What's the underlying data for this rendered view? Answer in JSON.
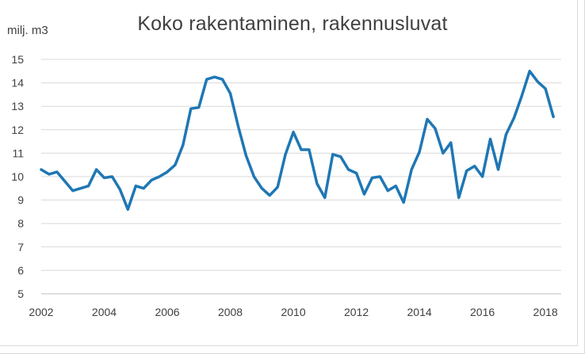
{
  "chart_data": {
    "type": "line",
    "title": "Koko rakentaminen, rakennusluvat",
    "ylabel": "milj. m3",
    "xlabel": "",
    "ylim": [
      5,
      15
    ],
    "yticks": [
      "5",
      "6",
      "7",
      "8",
      "9",
      "10",
      "11",
      "12",
      "13",
      "14",
      "15"
    ],
    "xticks": [
      "2002",
      "2004",
      "2006",
      "2008",
      "2010",
      "2012",
      "2014",
      "2016",
      "2018"
    ],
    "xlim": [
      2002,
      2018.5
    ],
    "grid": true,
    "legend": "none",
    "line_color": "#1f77b4",
    "series": [
      {
        "x": [
          2002,
          2002.25,
          2002.5,
          2002.75,
          2003,
          2003.25,
          2003.5,
          2003.75,
          2004,
          2004.25,
          2004.5,
          2004.75,
          2005,
          2005.25,
          2005.5,
          2005.75,
          2006,
          2006.25,
          2006.5,
          2006.75,
          2007,
          2007.25,
          2007.5,
          2007.75,
          2008,
          2008.25,
          2008.5,
          2008.75,
          2009,
          2009.25,
          2009.5,
          2009.75,
          2010,
          2010.25,
          2010.5,
          2010.75,
          2011,
          2011.25,
          2011.5,
          2011.75,
          2012,
          2012.25,
          2012.5,
          2012.75,
          2013,
          2013.25,
          2013.5,
          2013.75,
          2014,
          2014.25,
          2014.5,
          2014.75,
          2015,
          2015.25,
          2015.5,
          2015.75,
          2016,
          2016.25,
          2016.5,
          2016.75,
          2017,
          2017.25,
          2017.5,
          2017.75,
          2018,
          2018.25
        ],
        "y": [
          10.3,
          10.1,
          10.2,
          9.8,
          9.4,
          9.5,
          9.6,
          10.3,
          9.95,
          10.0,
          9.45,
          8.6,
          9.6,
          9.5,
          9.85,
          10.0,
          10.2,
          10.5,
          11.35,
          12.9,
          12.95,
          14.15,
          14.25,
          14.15,
          13.55,
          12.15,
          10.9,
          10.0,
          9.5,
          9.2,
          9.55,
          10.95,
          11.9,
          11.15,
          11.15,
          9.7,
          9.1,
          10.95,
          10.85,
          10.3,
          10.15,
          9.25,
          9.95,
          10.0,
          9.4,
          9.6,
          8.9,
          10.3,
          11.05,
          12.45,
          12.05,
          11.0,
          11.45,
          9.1,
          10.25,
          10.45,
          10.0,
          11.6,
          10.3,
          11.8,
          12.5,
          13.45,
          14.5,
          14.05,
          13.75,
          12.55
        ]
      }
    ]
  }
}
